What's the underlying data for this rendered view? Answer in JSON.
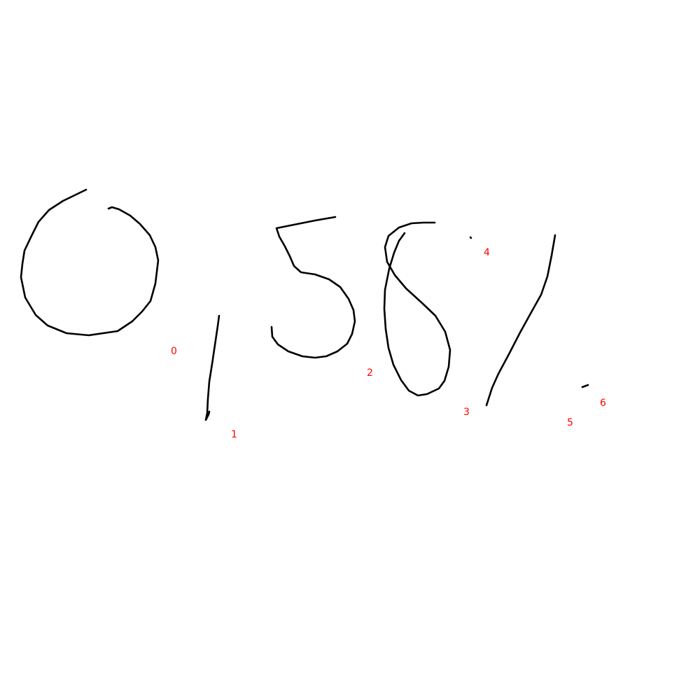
{
  "canvas": {
    "background_color": "#ffffff",
    "ink_color": "#000000",
    "label_color": "#ff0000"
  },
  "strokes": [
    {
      "id": "stroke-0",
      "label": "0"
    },
    {
      "id": "stroke-1",
      "label": "1"
    },
    {
      "id": "stroke-2",
      "label": "2"
    },
    {
      "id": "stroke-3",
      "label": "3"
    },
    {
      "id": "stroke-4",
      "label": "4"
    },
    {
      "id": "stroke-5",
      "label": "5"
    },
    {
      "id": "stroke-6",
      "label": "6"
    }
  ]
}
